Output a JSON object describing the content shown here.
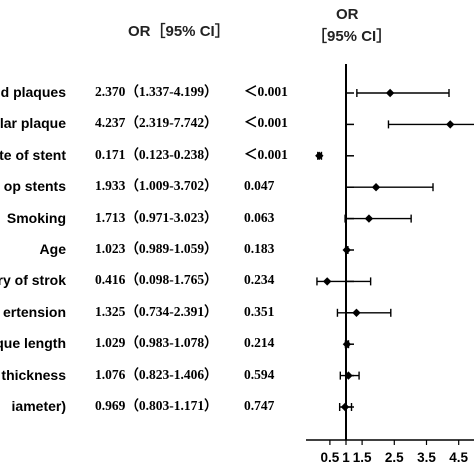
{
  "header": {
    "or_ci_label": "OR［95% CI］",
    "plot_or_label": "OR",
    "plot_ci_label": "［95% CI］"
  },
  "chart_data": {
    "type": "forest",
    "xlim": [
      0,
      4.6
    ],
    "reference_line": 1,
    "x_ticks": [
      "0.5",
      "1",
      "1.5",
      "2.5",
      "3.5",
      "4.5"
    ],
    "x_tick_values": [
      0.5,
      1,
      1.5,
      2.5,
      3.5,
      4.5
    ],
    "rows": [
      {
        "label": "d plaques",
        "or": 2.37,
        "lo": 1.337,
        "hi": 4.199,
        "or_ci": "2.370（1.337-4.199）",
        "p": "＜0.001"
      },
      {
        "label": "lar plaque",
        "or": 4.237,
        "lo": 2.319,
        "hi": 7.742,
        "or_ci": "4.237（2.319-7.742）",
        "p": "＜0.001"
      },
      {
        "label": "te of stent",
        "or": 0.171,
        "lo": 0.123,
        "hi": 0.238,
        "or_ci": "0.171（0.123-0.238）",
        "p": "＜0.001"
      },
      {
        "label": "op stents",
        "or": 1.933,
        "lo": 1.009,
        "hi": 3.702,
        "or_ci": "1.933（1.009-3.702）",
        "p": "0.047"
      },
      {
        "label": "Smoking",
        "or": 1.713,
        "lo": 0.971,
        "hi": 3.023,
        "or_ci": "1.713（0.971-3.023）",
        "p": "0.063"
      },
      {
        "label": "Age",
        "or": 1.023,
        "lo": 0.989,
        "hi": 1.059,
        "or_ci": "1.023（0.989-1.059）",
        "p": "0.183"
      },
      {
        "label": "ry of strok",
        "or": 0.416,
        "lo": 0.098,
        "hi": 1.765,
        "or_ci": "0.416（0.098-1.765）",
        "p": "0.234"
      },
      {
        "label": "ertension",
        "or": 1.325,
        "lo": 0.734,
        "hi": 2.391,
        "or_ci": "1.325（0.734-2.391）",
        "p": "0.351"
      },
      {
        "label": "que length",
        "or": 1.029,
        "lo": 0.983,
        "hi": 1.078,
        "or_ci": "1.029（0.983-1.078）",
        "p": "0.214"
      },
      {
        "label": "thickness",
        "or": 1.076,
        "lo": 0.823,
        "hi": 1.406,
        "or_ci": "1.076（0.823-1.406）",
        "p": "0.594"
      },
      {
        "label": "iameter)",
        "or": 0.969,
        "lo": 0.803,
        "hi": 1.171,
        "or_ci": "0.969（0.803-1.171）",
        "p": "0.747"
      }
    ]
  }
}
